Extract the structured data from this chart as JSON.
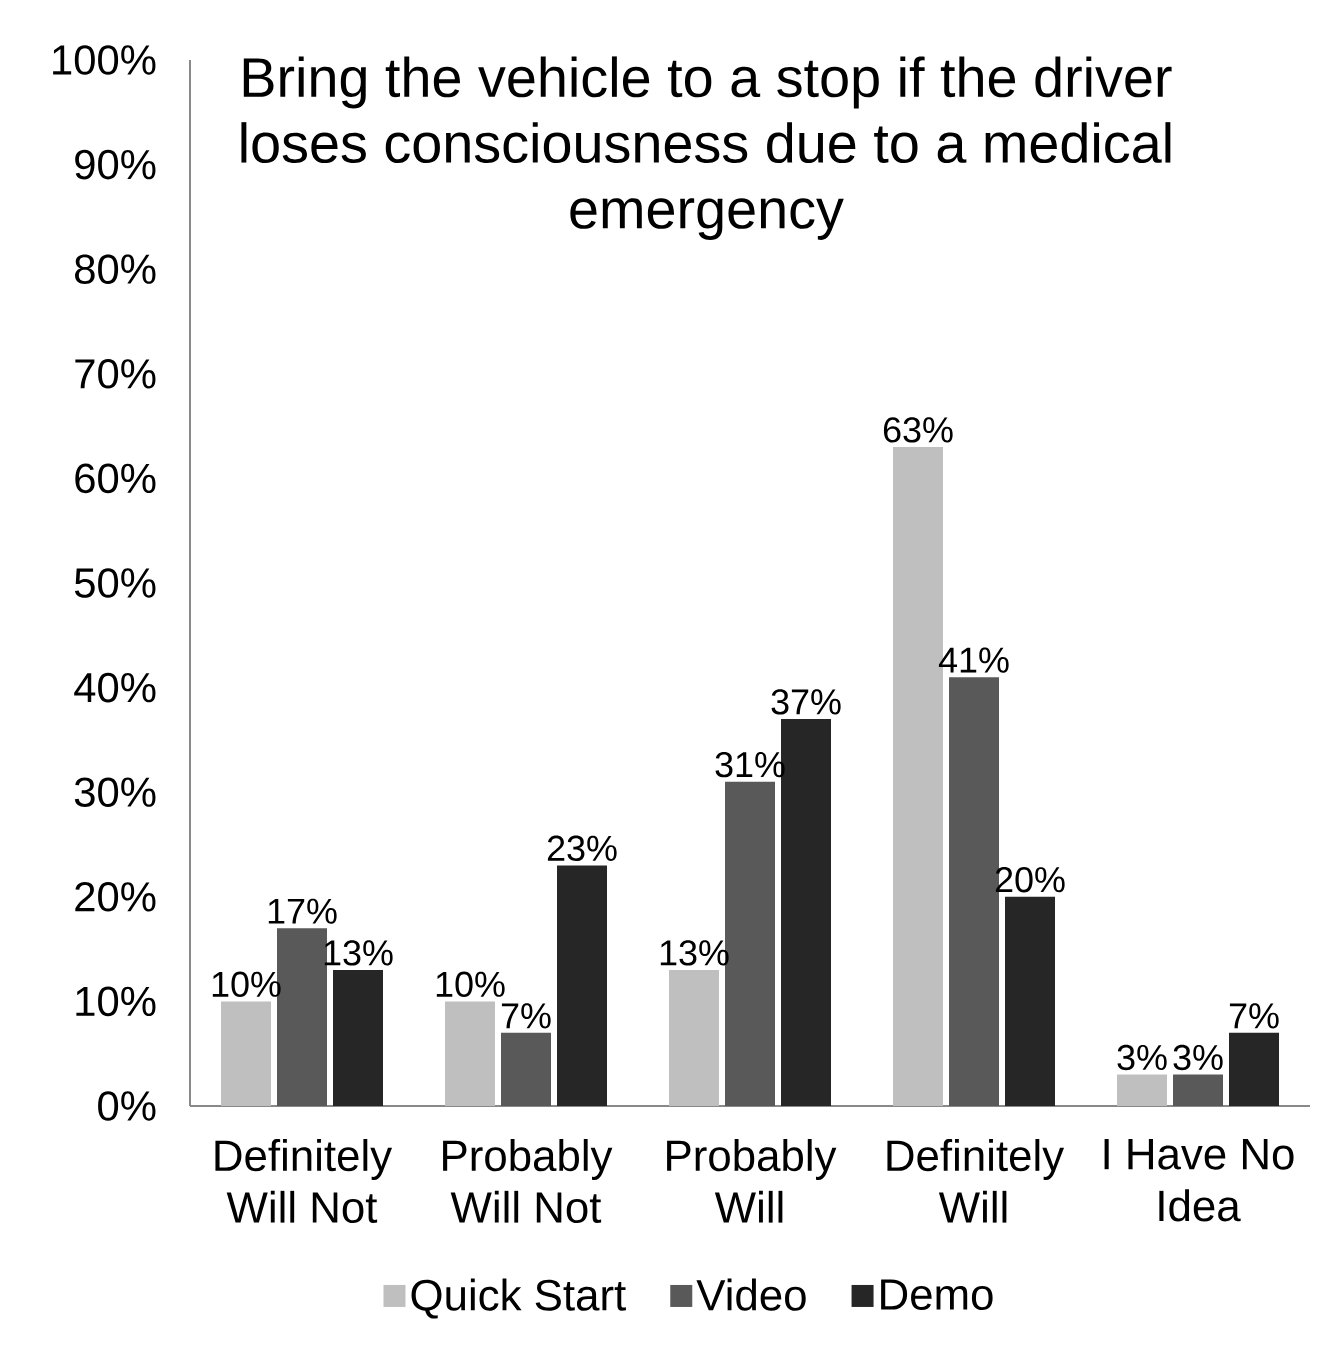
{
  "chart_data": {
    "type": "bar",
    "title": "Bring the vehicle to a stop if the driver loses consciousness due to a medical emergency",
    "categories": [
      "Definitely Will Not",
      "Probably Will Not",
      "Probably Will",
      "Definitely Will",
      "I Have No Idea"
    ],
    "series": [
      {
        "name": "Quick Start",
        "color": "#bfbfbf",
        "values": [
          10,
          10,
          13,
          63,
          3
        ],
        "value_labels": [
          "10%",
          "10%",
          "13%",
          "63%",
          "3%"
        ]
      },
      {
        "name": "Video",
        "color": "#595959",
        "values": [
          17,
          7,
          31,
          41,
          3
        ],
        "value_labels": [
          "17%",
          "7%",
          "31%",
          "41%",
          "3%"
        ]
      },
      {
        "name": "Demo",
        "color": "#262626",
        "values": [
          13,
          23,
          37,
          20,
          7
        ],
        "value_labels": [
          "13%",
          "23%",
          "37%",
          "20%",
          "7%"
        ]
      }
    ],
    "ylim": [
      0,
      100
    ],
    "yticks": [
      {
        "value": 0,
        "label": "0%"
      },
      {
        "value": 10,
        "label": "10%"
      },
      {
        "value": 20,
        "label": "20%"
      },
      {
        "value": 30,
        "label": "30%"
      },
      {
        "value": 40,
        "label": "40%"
      },
      {
        "value": 50,
        "label": "50%"
      },
      {
        "value": 60,
        "label": "60%"
      },
      {
        "value": 70,
        "label": "70%"
      },
      {
        "value": 80,
        "label": "80%"
      },
      {
        "value": 90,
        "label": "90%"
      },
      {
        "value": 100,
        "label": "100%"
      }
    ],
    "legend": "bottom"
  }
}
